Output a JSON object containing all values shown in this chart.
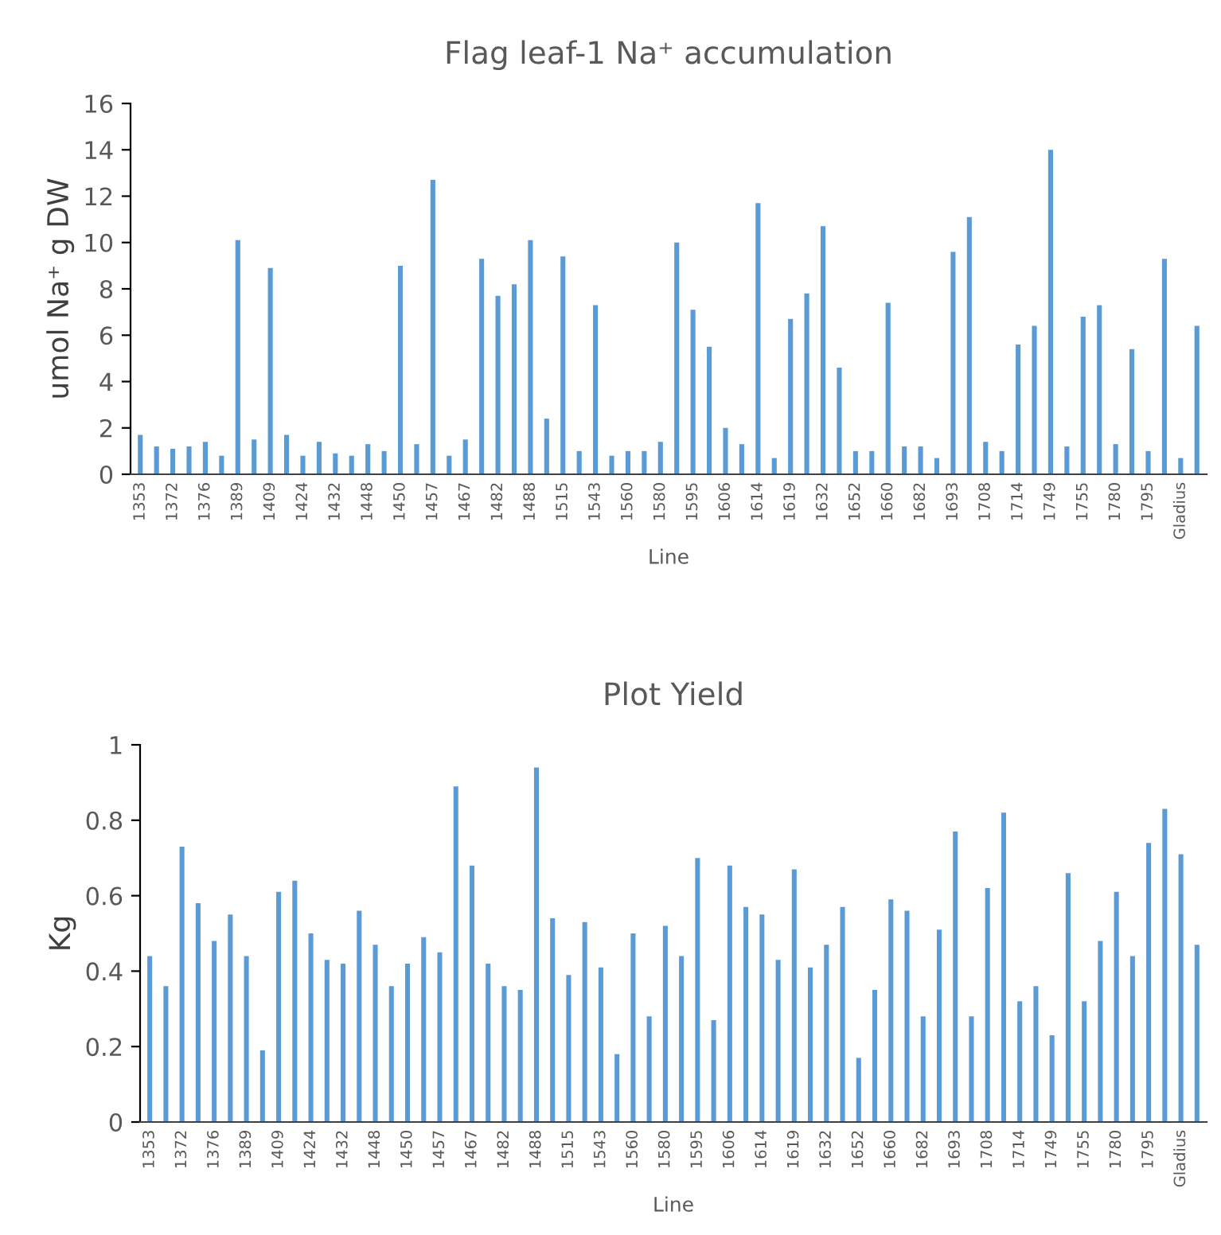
{
  "chart_data": [
    {
      "type": "bar",
      "title": "Flag leaf-1 Na⁺ accumulation",
      "xlabel": "Line",
      "ylabel": "umol Na⁺ g DW",
      "categories": [
        "1353",
        null,
        "1372",
        null,
        "1376",
        null,
        "1389",
        null,
        "1409",
        null,
        "1424",
        null,
        "1432",
        null,
        "1448",
        null,
        "1450",
        null,
        "1457",
        null,
        "1467",
        null,
        "1482",
        null,
        "1488",
        null,
        "1515",
        null,
        "1543",
        null,
        "1560",
        null,
        "1580",
        null,
        "1595",
        null,
        "1606",
        null,
        "1614",
        null,
        "1619",
        null,
        "1632",
        null,
        "1652",
        null,
        "1660",
        null,
        "1682",
        null,
        "1693",
        null,
        "1708",
        null,
        "1714",
        null,
        "1749",
        null,
        "1755",
        null,
        "1780",
        null,
        "1795",
        null,
        "Gladius",
        null
      ],
      "values": [
        1.7,
        1.2,
        1.1,
        1.2,
        1.4,
        0.8,
        10.1,
        1.5,
        8.9,
        1.7,
        0.8,
        1.4,
        0.9,
        0.8,
        1.3,
        1.0,
        9.0,
        1.3,
        12.7,
        0.8,
        1.5,
        9.3,
        7.7,
        8.2,
        10.1,
        2.4,
        9.4,
        1.0,
        7.3,
        0.8,
        1.0,
        1.0,
        1.4,
        10.0,
        7.1,
        5.5,
        2.0,
        1.3,
        11.7,
        0.7,
        6.7,
        7.8,
        10.7,
        4.6,
        1.0,
        1.0,
        7.4,
        1.2,
        1.2,
        0.7,
        9.6,
        11.1,
        1.4,
        1.0,
        5.6,
        6.4,
        14.0,
        1.2,
        6.8,
        7.3,
        1.3,
        5.4,
        1.0,
        9.3,
        0.7,
        6.4
      ],
      "color": "#5b9bd5",
      "ylim": [
        0,
        16
      ],
      "yticks": [
        0,
        2,
        4,
        6,
        8,
        10,
        12,
        14,
        16
      ],
      "grid": false,
      "legend": false
    },
    {
      "type": "bar",
      "title": "Plot Yield",
      "xlabel": "Line",
      "ylabel": "Kg",
      "categories": [
        "1353",
        null,
        "1372",
        null,
        "1376",
        null,
        "1389",
        null,
        "1409",
        null,
        "1424",
        null,
        "1432",
        null,
        "1448",
        null,
        "1450",
        null,
        "1457",
        null,
        "1467",
        null,
        "1482",
        null,
        "1488",
        null,
        "1515",
        null,
        "1543",
        null,
        "1560",
        null,
        "1580",
        null,
        "1595",
        null,
        "1606",
        null,
        "1614",
        null,
        "1619",
        null,
        "1632",
        null,
        "1652",
        null,
        "1660",
        null,
        "1682",
        null,
        "1693",
        null,
        "1708",
        null,
        "1714",
        null,
        "1749",
        null,
        "1755",
        null,
        "1780",
        null,
        "1795",
        null,
        "Gladius",
        null
      ],
      "values": [
        0.44,
        0.36,
        0.73,
        0.58,
        0.48,
        0.55,
        0.44,
        0.19,
        0.61,
        0.64,
        0.5,
        0.43,
        0.42,
        0.56,
        0.47,
        0.36,
        0.42,
        0.49,
        0.45,
        0.89,
        0.68,
        0.42,
        0.36,
        0.35,
        0.94,
        0.54,
        0.39,
        0.53,
        0.41,
        0.18,
        0.5,
        0.28,
        0.52,
        0.44,
        0.7,
        0.27,
        0.68,
        0.57,
        0.55,
        0.43,
        0.67,
        0.41,
        0.47,
        0.57,
        0.17,
        0.35,
        0.59,
        0.56,
        0.28,
        0.51,
        0.77,
        0.28,
        0.62,
        0.82,
        0.32,
        0.36,
        0.23,
        0.66,
        0.32,
        0.48,
        0.61,
        0.44,
        0.74,
        0.83,
        0.71,
        0.47
      ],
      "color": "#5b9bd5",
      "ylim": [
        0,
        1
      ],
      "yticks": [
        0,
        0.2,
        0.4,
        0.6,
        0.8,
        1
      ],
      "grid": false,
      "legend": false
    }
  ]
}
